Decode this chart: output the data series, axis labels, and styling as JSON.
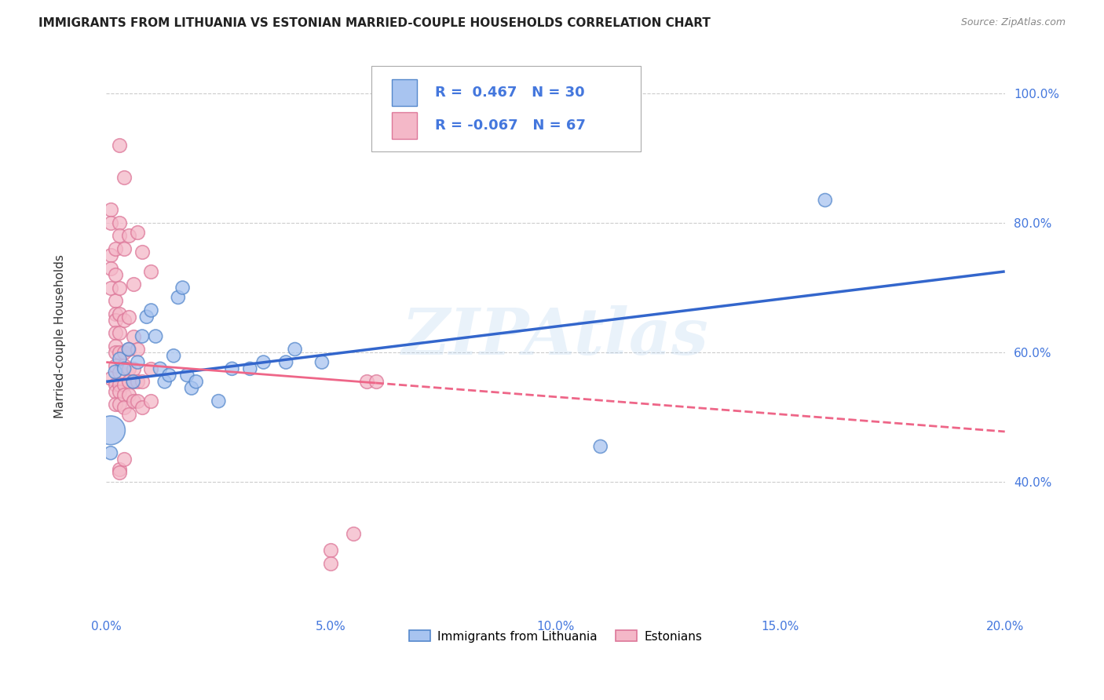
{
  "title": "IMMIGRANTS FROM LITHUANIA VS ESTONIAN MARRIED-COUPLE HOUSEHOLDS CORRELATION CHART",
  "source": "Source: ZipAtlas.com",
  "ylabel": "Married-couple Households",
  "watermark": "ZIPAtlas",
  "legend_blue_label": "Immigrants from Lithuania",
  "legend_pink_label": "Estonians",
  "R_blue": 0.467,
  "N_blue": 30,
  "R_pink": -0.067,
  "N_pink": 67,
  "xlim": [
    0.0,
    0.2
  ],
  "ylim": [
    0.2,
    1.05
  ],
  "yticks": [
    0.4,
    0.6,
    0.8,
    1.0
  ],
  "xticks": [
    0.0,
    0.05,
    0.1,
    0.15,
    0.2
  ],
  "blue_fill": "#A8C4F0",
  "blue_edge": "#5588CC",
  "pink_fill": "#F4B8C8",
  "pink_edge": "#DD7799",
  "blue_line_color": "#3366CC",
  "pink_line_color": "#EE6688",
  "label_color": "#4477DD",
  "blue_scatter": [
    [
      0.001,
      0.445
    ],
    [
      0.002,
      0.57
    ],
    [
      0.003,
      0.59
    ],
    [
      0.004,
      0.575
    ],
    [
      0.005,
      0.605
    ],
    [
      0.006,
      0.555
    ],
    [
      0.007,
      0.585
    ],
    [
      0.008,
      0.625
    ],
    [
      0.009,
      0.655
    ],
    [
      0.01,
      0.665
    ],
    [
      0.011,
      0.625
    ],
    [
      0.012,
      0.575
    ],
    [
      0.013,
      0.555
    ],
    [
      0.014,
      0.565
    ],
    [
      0.015,
      0.595
    ],
    [
      0.016,
      0.685
    ],
    [
      0.017,
      0.7
    ],
    [
      0.018,
      0.565
    ],
    [
      0.019,
      0.545
    ],
    [
      0.02,
      0.555
    ],
    [
      0.025,
      0.525
    ],
    [
      0.028,
      0.575
    ],
    [
      0.032,
      0.575
    ],
    [
      0.035,
      0.585
    ],
    [
      0.04,
      0.585
    ],
    [
      0.042,
      0.605
    ],
    [
      0.048,
      0.585
    ],
    [
      0.11,
      0.455
    ],
    [
      0.16,
      0.835
    ],
    [
      0.001,
      0.48
    ]
  ],
  "blue_scatter_sizes": [
    150,
    150,
    150,
    150,
    150,
    150,
    150,
    150,
    150,
    150,
    150,
    150,
    150,
    150,
    150,
    150,
    150,
    150,
    150,
    150,
    150,
    150,
    150,
    150,
    150,
    150,
    150,
    150,
    150,
    700
  ],
  "pink_scatter": [
    [
      0.001,
      0.56
    ],
    [
      0.001,
      0.82
    ],
    [
      0.001,
      0.8
    ],
    [
      0.001,
      0.75
    ],
    [
      0.001,
      0.73
    ],
    [
      0.001,
      0.7
    ],
    [
      0.002,
      0.76
    ],
    [
      0.002,
      0.72
    ],
    [
      0.002,
      0.68
    ],
    [
      0.002,
      0.66
    ],
    [
      0.002,
      0.65
    ],
    [
      0.002,
      0.63
    ],
    [
      0.002,
      0.61
    ],
    [
      0.002,
      0.6
    ],
    [
      0.002,
      0.58
    ],
    [
      0.002,
      0.55
    ],
    [
      0.002,
      0.54
    ],
    [
      0.002,
      0.52
    ],
    [
      0.003,
      0.92
    ],
    [
      0.003,
      0.8
    ],
    [
      0.003,
      0.78
    ],
    [
      0.003,
      0.7
    ],
    [
      0.003,
      0.66
    ],
    [
      0.003,
      0.63
    ],
    [
      0.003,
      0.6
    ],
    [
      0.003,
      0.57
    ],
    [
      0.003,
      0.55
    ],
    [
      0.003,
      0.54
    ],
    [
      0.003,
      0.52
    ],
    [
      0.003,
      0.42
    ],
    [
      0.003,
      0.415
    ],
    [
      0.004,
      0.87
    ],
    [
      0.004,
      0.76
    ],
    [
      0.004,
      0.65
    ],
    [
      0.004,
      0.6
    ],
    [
      0.004,
      0.58
    ],
    [
      0.004,
      0.55
    ],
    [
      0.004,
      0.535
    ],
    [
      0.004,
      0.515
    ],
    [
      0.004,
      0.435
    ],
    [
      0.005,
      0.78
    ],
    [
      0.005,
      0.655
    ],
    [
      0.005,
      0.605
    ],
    [
      0.005,
      0.575
    ],
    [
      0.005,
      0.555
    ],
    [
      0.005,
      0.535
    ],
    [
      0.005,
      0.505
    ],
    [
      0.006,
      0.705
    ],
    [
      0.006,
      0.625
    ],
    [
      0.006,
      0.575
    ],
    [
      0.006,
      0.555
    ],
    [
      0.006,
      0.525
    ],
    [
      0.007,
      0.785
    ],
    [
      0.007,
      0.605
    ],
    [
      0.007,
      0.555
    ],
    [
      0.007,
      0.525
    ],
    [
      0.008,
      0.755
    ],
    [
      0.008,
      0.555
    ],
    [
      0.008,
      0.515
    ],
    [
      0.01,
      0.725
    ],
    [
      0.01,
      0.575
    ],
    [
      0.01,
      0.525
    ],
    [
      0.05,
      0.295
    ],
    [
      0.05,
      0.275
    ],
    [
      0.055,
      0.32
    ],
    [
      0.058,
      0.555
    ],
    [
      0.06,
      0.555
    ]
  ],
  "blue_line": [
    [
      0.0,
      0.555
    ],
    [
      0.2,
      0.725
    ]
  ],
  "pink_line_solid": [
    [
      0.0,
      0.585
    ],
    [
      0.06,
      0.553
    ]
  ],
  "pink_line_dashed": [
    [
      0.06,
      0.553
    ],
    [
      0.2,
      0.478
    ]
  ]
}
